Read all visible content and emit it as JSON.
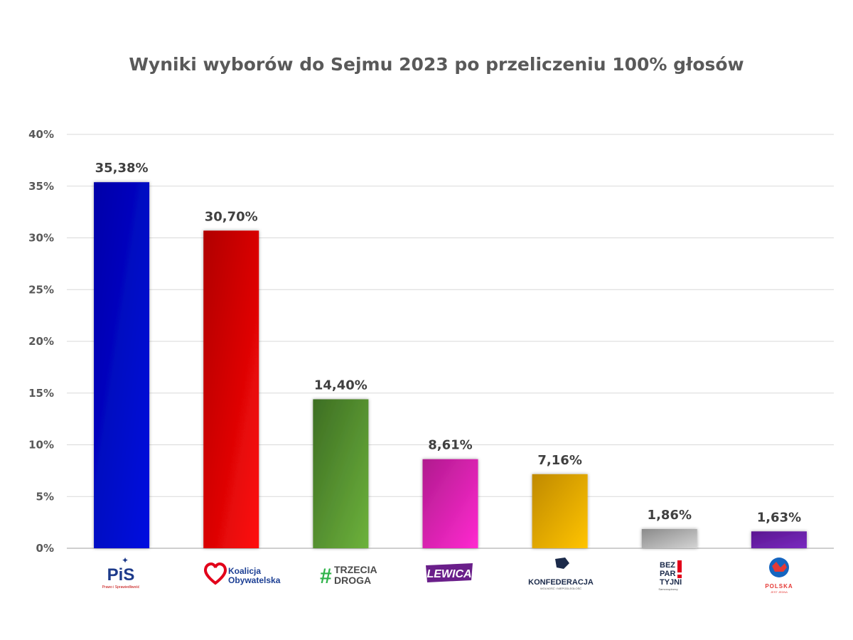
{
  "chart_data": {
    "type": "bar",
    "title": "Wyniki wyborów do Sejmu 2023 po przeliczeniu 100% głosów",
    "xlabel": "",
    "ylabel": "",
    "ylim": [
      0,
      40
    ],
    "yticks": [
      "0%",
      "5%",
      "10%",
      "15%",
      "20%",
      "25%",
      "30%",
      "35%",
      "40%"
    ],
    "grid": true,
    "categories": [
      "PiS",
      "Koalicja Obywatelska",
      "Trzecia Droga",
      "Lewica",
      "Konfederacja",
      "Bezpartyjni Samorządowcy",
      "Polska Jest Jedna"
    ],
    "values": [
      35.38,
      30.7,
      14.4,
      8.61,
      7.16,
      1.86,
      1.63
    ],
    "data_labels": [
      "35,38%",
      "30,70%",
      "14,40%",
      "8,61%",
      "7,16%",
      "1,86%",
      "1,63%"
    ],
    "colors": [
      [
        "#0000a8",
        "#0010e0"
      ],
      [
        "#b00000",
        "#ff0a0a"
      ],
      [
        "#3d6e23",
        "#6db23c"
      ],
      [
        "#b01b8e",
        "#ff2ad0"
      ],
      [
        "#c08a00",
        "#ffc400"
      ],
      [
        "#8a8a8a",
        "#d4d4d4"
      ],
      [
        "#5a1690",
        "#7a2bc0"
      ]
    ]
  },
  "logos": [
    {
      "name": "pis-logo",
      "line1": "PiS",
      "line2": "Prawo i Sprawiedliwość"
    },
    {
      "name": "koalicja-obywatelska-logo",
      "line1": "Koalicja",
      "line2": "Obywatelska"
    },
    {
      "name": "trzecia-droga-logo",
      "line1": "TRZECIA",
      "line2": "DROGA"
    },
    {
      "name": "lewica-logo",
      "line1": "LEWICA"
    },
    {
      "name": "konfederacja-logo",
      "line1": "KONFEDERACJA",
      "line2": "WOLNOŚĆ I NIEPODLEGŁOŚĆ"
    },
    {
      "name": "bezpartyjni-logo",
      "line1": "BEZ",
      "line2": "PAR",
      "line3": "TYJNI",
      "line4": "Samorządowcy"
    },
    {
      "name": "polska-jest-jedna-logo",
      "line1": "POLSKA",
      "line2": "JEST JEDNA"
    }
  ]
}
